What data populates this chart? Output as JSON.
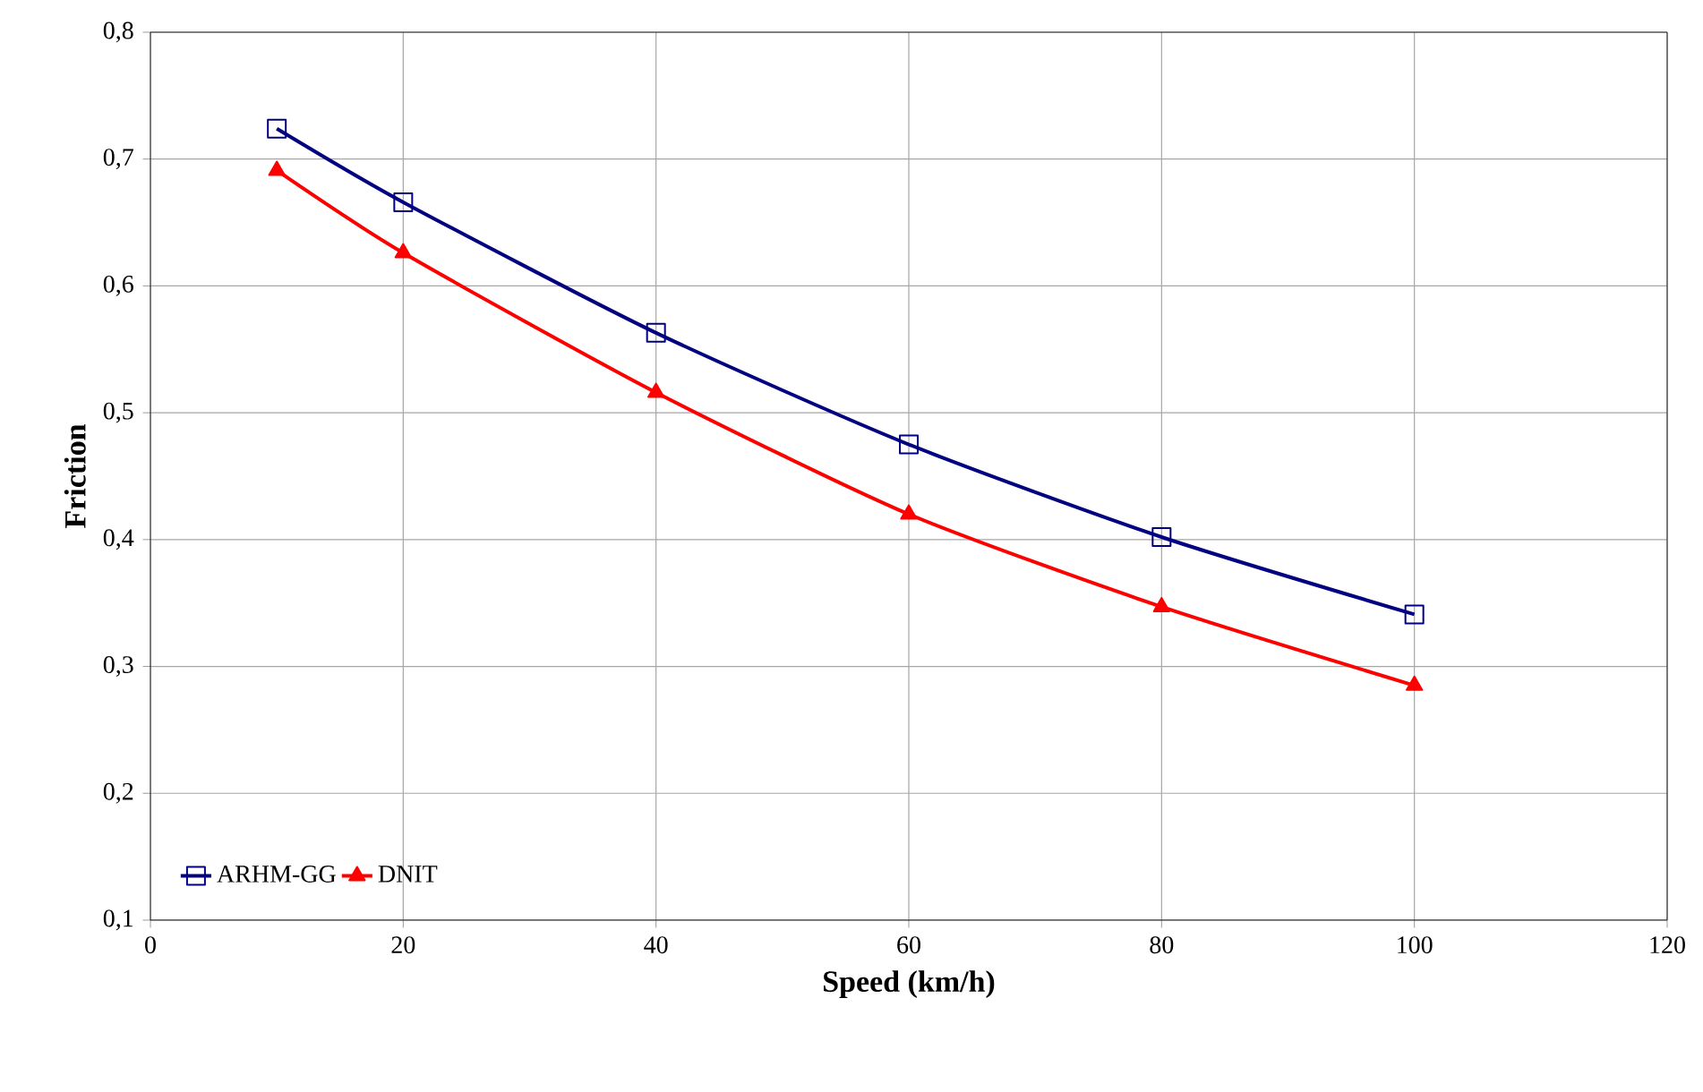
{
  "chart_data": {
    "type": "line",
    "xlabel": "Speed (km/h)",
    "ylabel": "Friction",
    "x": [
      10,
      20,
      40,
      60,
      80,
      100
    ],
    "series": [
      {
        "name": "ARHM-GG",
        "color": "#000080",
        "marker": "square",
        "values": [
          0.724,
          0.666,
          0.563,
          0.475,
          0.402,
          0.341
        ]
      },
      {
        "name": "DNIT",
        "color": "#ff0000",
        "marker": "triangle",
        "values": [
          0.691,
          0.626,
          0.516,
          0.42,
          0.347,
          0.285
        ]
      }
    ],
    "xlim": [
      0,
      120
    ],
    "xticks": [
      0,
      20,
      40,
      60,
      80,
      100,
      120
    ],
    "ylim": [
      0.1,
      0.8
    ],
    "yticks": [
      {
        "value": 0.1,
        "label": "0,1"
      },
      {
        "value": 0.2,
        "label": "0,2"
      },
      {
        "value": 0.3,
        "label": "0,3"
      },
      {
        "value": 0.4,
        "label": "0,4"
      },
      {
        "value": 0.5,
        "label": "0,5"
      },
      {
        "value": 0.6,
        "label": "0,6"
      },
      {
        "value": 0.7,
        "label": "0,7"
      },
      {
        "value": 0.8,
        "label": "0,8"
      }
    ],
    "grid": true,
    "legend": "bottom left",
    "line_style": "solid"
  }
}
